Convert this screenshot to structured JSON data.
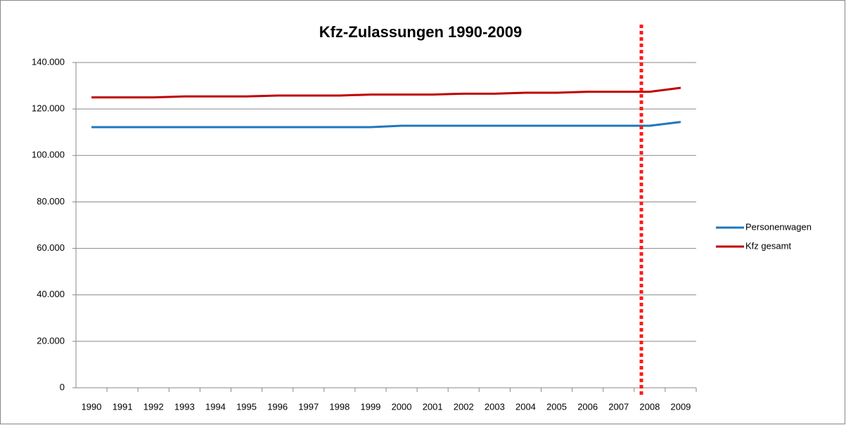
{
  "chart_data": {
    "type": "line",
    "title": "Kfz-Zulassungen 1990-2009",
    "categories": [
      "1990",
      "1991",
      "1992",
      "1993",
      "1994",
      "1995",
      "1996",
      "1997",
      "1998",
      "1999",
      "2000",
      "2001",
      "2002",
      "2003",
      "2004",
      "2005",
      "2006",
      "2007",
      "2008",
      "2009"
    ],
    "series": [
      {
        "name": "Personenwagen",
        "color": "#1f77bb",
        "values": [
          112200,
          112200,
          112200,
          112200,
          112200,
          112200,
          112200,
          112200,
          112200,
          112200,
          112800,
          112800,
          112800,
          112800,
          112800,
          112800,
          112800,
          112800,
          112800,
          114400
        ]
      },
      {
        "name": "Kfz gesamt",
        "color": "#c00000",
        "values": [
          125000,
          125000,
          125000,
          125400,
          125400,
          125400,
          125800,
          125800,
          125800,
          126200,
          126200,
          126200,
          126600,
          126600,
          127000,
          127000,
          127400,
          127400,
          127400,
          129100
        ]
      }
    ],
    "ylim": [
      0,
      140000
    ],
    "yticks": [
      0,
      {
        "value": 20000,
        "label": "20.000"
      },
      {
        "value": 40000,
        "label": "40.000"
      },
      {
        "value": 60000,
        "label": "60.000"
      },
      {
        "value": 80000,
        "label": "80.000"
      },
      {
        "value": 100000,
        "label": "100.000"
      },
      {
        "value": 120000,
        "label": "120.000"
      },
      {
        "value": 140000,
        "label": "140.000"
      }
    ],
    "grid": true,
    "legend": "right"
  }
}
